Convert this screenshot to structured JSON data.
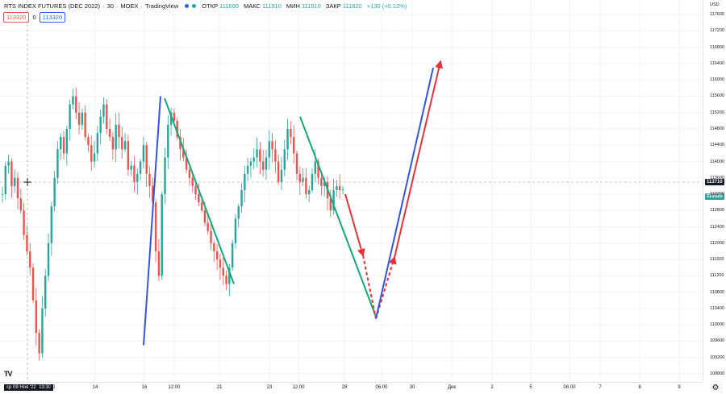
{
  "header": {
    "symbol": "RTS INDEX FUTURES (DEC 2022)",
    "interval": "30",
    "exchange": "MOEX",
    "source": "TradingView",
    "open_label": "ОТКР",
    "open_value": "111690",
    "high_label": "МАКС",
    "high_value": "111910",
    "low_label": "МИН",
    "low_value": "111610",
    "close_label": "ЗАКР",
    "close_value": "111820",
    "change": "+130 (+0.12%)",
    "sell_price": "113320",
    "spread": "0",
    "buy_price": "113320"
  },
  "axes": {
    "currency": "USD",
    "cursor_price": "113710",
    "last_price": "113320",
    "cursor_time": "ср 09 Ноя '22",
    "cursor_clock": "13:30",
    "x_tail": "00"
  },
  "colors": {
    "up": "#26a69a",
    "down": "#ef5350",
    "wave_green": "#14a878",
    "wave_blue": "#3355e0",
    "wave_red": "#e8323a"
  },
  "chart_data": {
    "type": "line",
    "title": "",
    "xlabel": "",
    "ylabel": "",
    "ylim": [
      108600,
      117900
    ],
    "yticks": [
      108800,
      109200,
      109600,
      110000,
      110400,
      110800,
      111200,
      111600,
      112000,
      112400,
      112800,
      113200,
      113600,
      114000,
      114400,
      114800,
      115200,
      115600,
      116000,
      116400,
      116800,
      117200,
      117600
    ],
    "xticks": [
      "14",
      "16",
      "12:00",
      "21",
      "23",
      "12:00",
      "28",
      "06:00",
      "30",
      "Дек",
      "2",
      "5",
      "06:00",
      "7",
      "8",
      "9"
    ],
    "series": [
      {
        "values": [
          113200,
          113900,
          114000,
          113400,
          113600,
          113100,
          112800,
          112200,
          111800,
          111400,
          110600,
          109800,
          109300,
          110400,
          111200,
          112000,
          112900,
          113600,
          114300,
          114600,
          114200,
          114800,
          115400,
          115600,
          115200,
          114900,
          115200,
          114600,
          114400,
          114000,
          114200,
          114700,
          115100,
          115400,
          114800,
          114600,
          114300,
          114900,
          114600,
          114300,
          114500,
          113800,
          113900,
          113500,
          113700,
          114000,
          114400,
          113700,
          113400,
          113000,
          111800,
          111200,
          113200,
          114100,
          114900,
          115200,
          115000,
          114600,
          114300,
          114100,
          113800,
          113600,
          113400,
          113200,
          113000,
          112800,
          112500,
          112300,
          112000,
          111800,
          111600,
          111400,
          111200,
          111000,
          111400,
          112000,
          112600,
          112900,
          113300,
          113700,
          113900,
          114000,
          114100,
          114300,
          114000,
          113800,
          114100,
          114500,
          114300,
          114000,
          113500,
          113800,
          114300,
          114800,
          114600,
          114200,
          113700,
          113500,
          113600,
          113200,
          113300,
          113700,
          114000,
          113600,
          113400,
          113500,
          113100,
          112800,
          113300,
          113400,
          113300,
          113320
        ]
      },
      {
        "values": [
          115550,
          111000
        ]
      },
      {
        "values": [
          109500,
          115600
        ]
      },
      {
        "values": [
          115100,
          110200
        ]
      },
      {
        "values": [
          113200,
          111700,
          110150
        ]
      },
      {
        "values": [
          110150,
          111650,
          116450
        ]
      }
    ]
  }
}
